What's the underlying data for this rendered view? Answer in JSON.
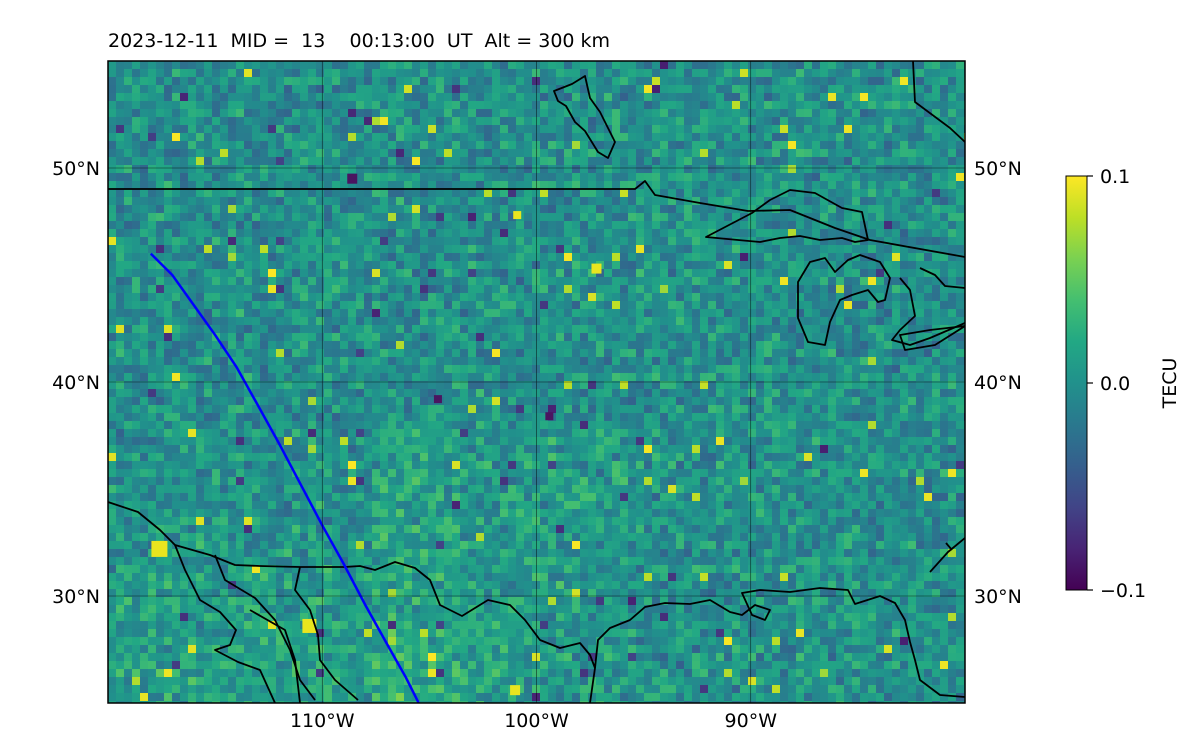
{
  "title": "2023-12-11  MID =  13    00:13:00  UT  Alt = 300 km",
  "map": {
    "lon_range": [
      -120,
      -80
    ],
    "lat_range": [
      25,
      55
    ],
    "grid_lons": [
      -110,
      -100,
      -90
    ],
    "grid_lats": [
      30,
      40,
      50
    ],
    "lon_labels": [
      "110°W",
      "100°W",
      "90°W"
    ],
    "lat_labels": [
      "30°N",
      "40°N",
      "50°N"
    ],
    "field": "perturbation TEC map (viridis colormap), mostly near 0.0 with scattered positive (yellow) and negative (purple) pixels",
    "track_color": "#0000ff",
    "coastline_color": "#000000"
  },
  "colorbar": {
    "label": "TECU",
    "min": -0.1,
    "max": 0.1,
    "ticks": [
      "0.1",
      "0.0",
      "−0.1"
    ],
    "colormap": "viridis"
  },
  "track": {
    "name": "satellite-track",
    "points": [
      [
        -118,
        46
      ],
      [
        -117,
        45
      ],
      [
        -116,
        43.6
      ],
      [
        -115,
        42.2
      ],
      [
        -114,
        40.7
      ],
      [
        -113,
        38.9
      ],
      [
        -112,
        37.1
      ],
      [
        -111,
        35.2
      ],
      [
        -110,
        33.3
      ],
      [
        -109,
        31.5
      ],
      [
        -108,
        29.6
      ],
      [
        -107,
        27.8
      ],
      [
        -106.1,
        26.2
      ],
      [
        -105.5,
        25
      ]
    ]
  }
}
